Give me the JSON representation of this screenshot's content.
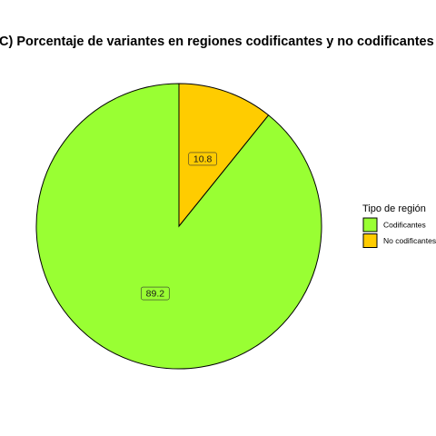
{
  "chart_data": {
    "type": "pie",
    "title": "C) Porcentaje de variantes en regiones codificantes y no codificantes",
    "legend_title": "Tipo de región",
    "legend_position": "right",
    "slices": [
      {
        "name": "Codificantes",
        "value": 89.2,
        "label": "89.2",
        "color": "#99FF33"
      },
      {
        "name": "No codificantes",
        "value": 10.8,
        "label": "10.8",
        "color": "#FFCC00"
      }
    ],
    "stroke_color": "#000000"
  }
}
